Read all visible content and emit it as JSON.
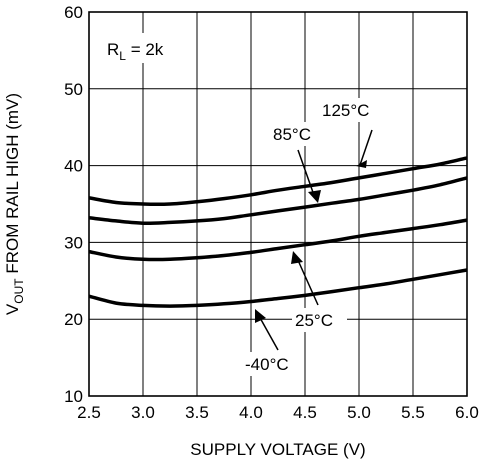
{
  "chart_data": {
    "type": "line",
    "xlabel": "SUPPLY VOLTAGE (V)",
    "ylabel": {
      "prefix": "V",
      "subscript": "OUT",
      "suffix": " FROM RAIL HIGH (mV)"
    },
    "xlim": [
      2.5,
      6.0
    ],
    "ylim": [
      10,
      60
    ],
    "x_ticks": [
      "2.5",
      "3.0",
      "3.5",
      "4.0",
      "4.5",
      "5.0",
      "5.5",
      "6.0"
    ],
    "y_ticks": [
      "10",
      "20",
      "30",
      "40",
      "50",
      "60"
    ],
    "grid": true,
    "condition": {
      "prefix": "R",
      "subscript": "L",
      "suffix": " = 2k"
    },
    "series": [
      {
        "name": "125°C",
        "x": [
          2.5,
          2.75,
          3.0,
          3.25,
          3.5,
          3.75,
          4.0,
          4.25,
          4.5,
          4.75,
          5.0,
          5.25,
          5.5,
          5.75,
          6.0
        ],
        "y": [
          35.8,
          35.2,
          35.0,
          35.0,
          35.3,
          35.7,
          36.2,
          36.8,
          37.3,
          37.8,
          38.4,
          39.0,
          39.6,
          40.2,
          41.0
        ]
      },
      {
        "name": "85°C",
        "x": [
          2.5,
          2.75,
          3.0,
          3.25,
          3.5,
          3.75,
          4.0,
          4.25,
          4.5,
          4.75,
          5.0,
          5.25,
          5.5,
          5.75,
          6.0
        ],
        "y": [
          33.2,
          32.8,
          32.5,
          32.6,
          32.8,
          33.1,
          33.6,
          34.1,
          34.6,
          35.1,
          35.6,
          36.2,
          36.8,
          37.5,
          38.4
        ]
      },
      {
        "name": "25°C",
        "x": [
          2.5,
          2.75,
          3.0,
          3.25,
          3.5,
          3.75,
          4.0,
          4.25,
          4.5,
          4.75,
          5.0,
          5.25,
          5.5,
          5.75,
          6.0
        ],
        "y": [
          28.8,
          28.1,
          27.8,
          27.8,
          28.0,
          28.3,
          28.7,
          29.2,
          29.7,
          30.2,
          30.8,
          31.3,
          31.8,
          32.3,
          32.9
        ]
      },
      {
        "name": "-40°C",
        "x": [
          2.5,
          2.75,
          3.0,
          3.25,
          3.5,
          3.75,
          4.0,
          4.25,
          4.5,
          4.75,
          5.0,
          5.25,
          5.5,
          5.75,
          6.0
        ],
        "y": [
          23.0,
          22.1,
          21.8,
          21.7,
          21.8,
          22.0,
          22.3,
          22.7,
          23.1,
          23.6,
          24.1,
          24.6,
          25.2,
          25.8,
          26.4
        ]
      }
    ],
    "annotations": [
      {
        "text": "125°C",
        "series": "125°C"
      },
      {
        "text": "85°C",
        "series": "85°C"
      },
      {
        "text": "25°C",
        "series": "25°C"
      },
      {
        "text": "-40°C",
        "series": "-40°C"
      }
    ]
  }
}
